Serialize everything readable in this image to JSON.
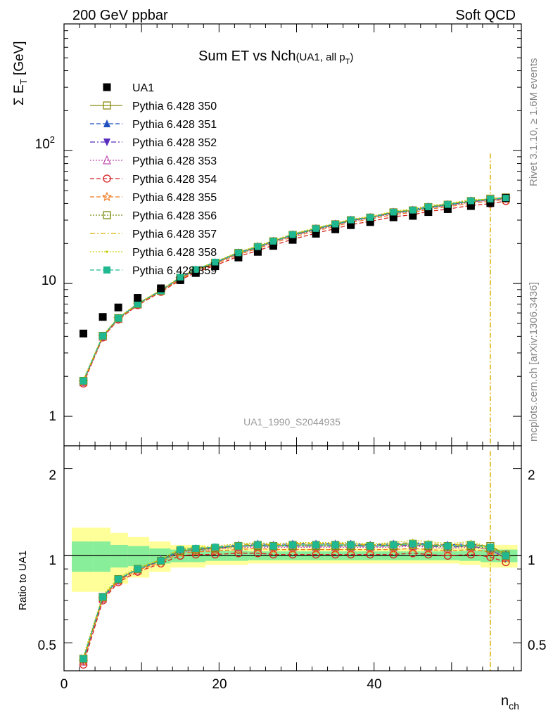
{
  "header": {
    "left": "200 GeV ppbar",
    "right": "Soft QCD"
  },
  "side_text": {
    "rivet": "Rivet 3.1.10, ≥ 1.6M events",
    "mcplots": "mcplots.cern.ch [arXiv:1306.3436]"
  },
  "main_panel": {
    "title_main": "Sum ET vs Nch",
    "title_sub": "(UA1, all p",
    "title_sub_index": "T",
    "title_sub_close": ")",
    "ylabel_sigma": "Σ E",
    "ylabel_sub": "T",
    "ylabel_unit": " [GeV]",
    "watermark": "UA1_1990_S2044935",
    "ytick_labels": {
      "t1": "1",
      "t10": "10",
      "t100_base": "10",
      "t100_exp": "2"
    }
  },
  "ratio_panel": {
    "ylabel": "Ratio to UA1",
    "ytick_labels": [
      "0.5",
      "1",
      "2"
    ]
  },
  "xaxis": {
    "label_base": "n",
    "label_sub": "ch",
    "tick_labels": [
      "0",
      "20",
      "40"
    ]
  },
  "legend": [
    {
      "name": "UA1",
      "color": "#000000",
      "marker": "square-filled",
      "dash": "none"
    },
    {
      "name": "Pythia 6.428 350",
      "color": "#8a8a12",
      "marker": "square-open",
      "dash": "solid"
    },
    {
      "name": "Pythia 6.428 351",
      "color": "#1f4fbf",
      "marker": "triangle-up-filled",
      "dash": "dashed"
    },
    {
      "name": "Pythia 6.428 352",
      "color": "#5a2bbf",
      "marker": "triangle-down-filled",
      "dash": "dashdot"
    },
    {
      "name": "Pythia 6.428 353",
      "color": "#c04fb0",
      "marker": "triangle-up-open",
      "dash": "dotted"
    },
    {
      "name": "Pythia 6.428 354",
      "color": "#d42020",
      "marker": "circle-open",
      "dash": "dashed"
    },
    {
      "name": "Pythia 6.428 355",
      "color": "#f07a20",
      "marker": "star-open",
      "dash": "dashed"
    },
    {
      "name": "Pythia 6.428 356",
      "color": "#7a8c10",
      "marker": "square-open",
      "dash": "dotted"
    },
    {
      "name": "Pythia 6.428 357",
      "color": "#d8b000",
      "marker": "none",
      "dash": "dashdot"
    },
    {
      "name": "Pythia 6.428 358",
      "color": "#c8d010",
      "marker": "dot",
      "dash": "dotted"
    },
    {
      "name": "Pythia 6.428 359",
      "color": "#20b890",
      "marker": "square-filled",
      "dash": "dashed"
    }
  ],
  "chart_data": {
    "type": "scatter",
    "title": "Sum ET vs Nch(UA1, all pT)",
    "xlabel": "n_ch",
    "ylabel": "Σ E_T [GeV]",
    "ratio_ylabel": "Ratio to UA1",
    "xlim": [
      0,
      59
    ],
    "ylim": [
      0.6,
      900
    ],
    "yscale": "log",
    "ratio_ylim": [
      0.4,
      2.4
    ],
    "ratio_yscale": "log",
    "x": [
      2.5,
      5,
      7,
      9.5,
      12.5,
      15,
      17,
      19.5,
      22.5,
      25,
      27,
      29.5,
      32.5,
      35,
      37,
      39.5,
      42.5,
      45,
      47,
      49.5,
      52.5,
      55,
      57
    ],
    "data": {
      "name": "UA1",
      "y": [
        4.2,
        5.6,
        6.6,
        7.8,
        9.2,
        10.6,
        12.0,
        13.5,
        15.7,
        17.3,
        19.2,
        21.3,
        23.7,
        25.6,
        27.5,
        29.0,
        31.5,
        32.3,
        34.5,
        36.3,
        38.3,
        40.3,
        44.0
      ],
      "band_inner": [
        0.12,
        0.12,
        0.09,
        0.08,
        0.06,
        0.05,
        0.05,
        0.04,
        0.04,
        0.035,
        0.035,
        0.035,
        0.035,
        0.035,
        0.035,
        0.035,
        0.035,
        0.035,
        0.035,
        0.035,
        0.04,
        0.05,
        0.05
      ],
      "band_outer": [
        0.25,
        0.25,
        0.2,
        0.16,
        0.12,
        0.09,
        0.09,
        0.07,
        0.07,
        0.06,
        0.06,
        0.06,
        0.06,
        0.06,
        0.06,
        0.06,
        0.06,
        0.06,
        0.06,
        0.06,
        0.07,
        0.09,
        0.09
      ]
    },
    "mc_series": [
      {
        "name": "Pythia 6.428 350",
        "ratio": [
          0.44,
          0.72,
          0.83,
          0.9,
          0.96,
          1.04,
          1.05,
          1.06,
          1.08,
          1.09,
          1.08,
          1.09,
          1.09,
          1.09,
          1.09,
          1.08,
          1.09,
          1.1,
          1.09,
          1.08,
          1.09,
          1.08,
          1.01
        ]
      },
      {
        "name": "Pythia 6.428 351",
        "ratio": [
          0.44,
          0.72,
          0.83,
          0.9,
          0.97,
          1.05,
          1.06,
          1.07,
          1.09,
          1.1,
          1.09,
          1.1,
          1.1,
          1.1,
          1.1,
          1.09,
          1.1,
          1.11,
          1.1,
          1.09,
          1.1,
          1.07,
          1.01
        ]
      },
      {
        "name": "Pythia 6.428 352",
        "ratio": [
          0.43,
          0.71,
          0.82,
          0.9,
          0.96,
          1.04,
          1.05,
          1.06,
          1.08,
          1.08,
          1.08,
          1.08,
          1.08,
          1.08,
          1.08,
          1.08,
          1.08,
          1.09,
          1.08,
          1.07,
          1.08,
          1.05,
          0.98
        ]
      },
      {
        "name": "Pythia 6.428 353",
        "ratio": [
          0.43,
          0.71,
          0.82,
          0.89,
          0.96,
          1.03,
          1.04,
          1.05,
          1.07,
          1.07,
          1.07,
          1.07,
          1.07,
          1.07,
          1.07,
          1.07,
          1.07,
          1.08,
          1.07,
          1.06,
          1.07,
          1.05,
          0.99
        ]
      },
      {
        "name": "Pythia 6.428 354",
        "ratio": [
          0.42,
          0.7,
          0.81,
          0.88,
          0.94,
          1.0,
          1.01,
          1.01,
          1.02,
          1.02,
          1.01,
          1.01,
          1.01,
          1.01,
          1.01,
          1.01,
          1.01,
          1.02,
          1.01,
          1.0,
          1.01,
          0.99,
          0.95
        ]
      },
      {
        "name": "Pythia 6.428 355",
        "ratio": [
          0.43,
          0.71,
          0.82,
          0.89,
          0.95,
          1.02,
          1.03,
          1.04,
          1.05,
          1.06,
          1.05,
          1.05,
          1.05,
          1.05,
          1.05,
          1.05,
          1.05,
          1.06,
          1.05,
          1.04,
          1.05,
          1.03,
          0.98
        ]
      },
      {
        "name": "Pythia 6.428 356",
        "ratio": [
          0.44,
          0.72,
          0.83,
          0.9,
          0.96,
          1.04,
          1.05,
          1.06,
          1.08,
          1.08,
          1.08,
          1.08,
          1.08,
          1.08,
          1.08,
          1.08,
          1.08,
          1.09,
          1.08,
          1.07,
          1.08,
          1.06,
          1.0
        ]
      },
      {
        "name": "Pythia 6.428 357",
        "ratio": [
          0.44,
          0.72,
          0.83,
          0.9,
          0.97,
          1.05,
          1.06,
          1.07,
          1.09,
          1.1,
          1.09,
          1.1,
          1.1,
          1.1,
          1.1,
          1.09,
          1.1,
          1.11,
          1.1,
          1.09,
          1.1,
          1.07,
          1.01
        ]
      },
      {
        "name": "Pythia 6.428 358",
        "ratio": [
          0.45,
          0.73,
          0.84,
          0.91,
          0.97,
          1.06,
          1.07,
          1.08,
          1.1,
          1.11,
          1.1,
          1.11,
          1.11,
          1.11,
          1.11,
          1.1,
          1.11,
          1.13,
          1.12,
          1.1,
          1.12,
          1.07,
          1.01
        ]
      },
      {
        "name": "Pythia 6.428 359",
        "ratio": [
          0.44,
          0.72,
          0.83,
          0.9,
          0.96,
          1.05,
          1.06,
          1.07,
          1.08,
          1.09,
          1.08,
          1.09,
          1.09,
          1.09,
          1.09,
          1.08,
          1.09,
          1.1,
          1.09,
          1.08,
          1.09,
          1.07,
          1.0
        ]
      }
    ],
    "outlier_x": 55,
    "outlier_series": "Pythia 6.428 357"
  }
}
